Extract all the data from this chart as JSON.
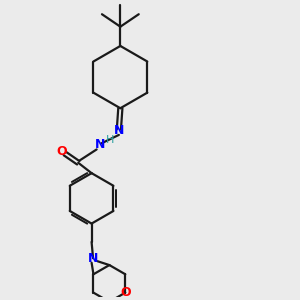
{
  "background_color": "#ebebeb",
  "bond_color": "#1a1a1a",
  "N_color": "#0000ff",
  "O_color": "#ff0000",
  "H_color": "#2aa0a0",
  "line_width": 1.6,
  "figsize": [
    3.0,
    3.0
  ],
  "dpi": 100,
  "xlim": [
    0,
    10
  ],
  "ylim": [
    0,
    10
  ]
}
